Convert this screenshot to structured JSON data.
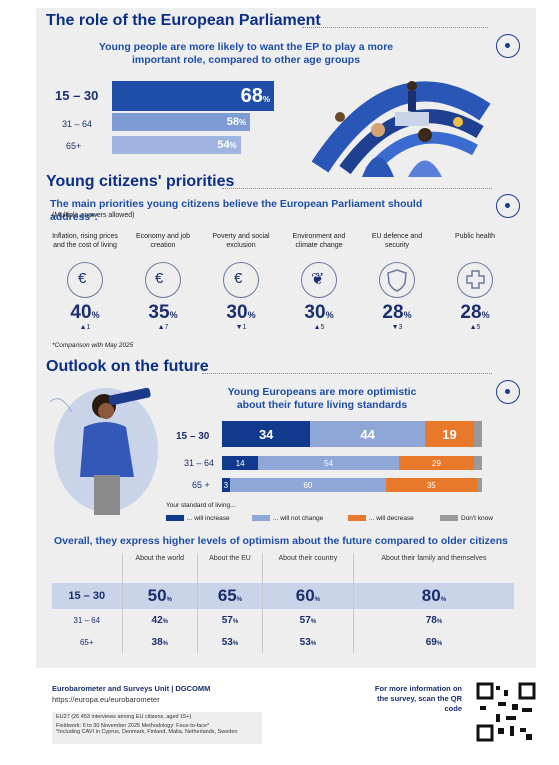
{
  "section1": {
    "title": "The role of the European Parliament",
    "subtitle": "Young people are more likely to want the EP to play a more important role, compared to other age groups",
    "rows": [
      {
        "age": "15 – 30",
        "value": 68,
        "label": "68"
      },
      {
        "age": "31 – 64",
        "value": 58,
        "label": "58"
      },
      {
        "age": "65+",
        "value": 54,
        "label": "54"
      }
    ],
    "pct": "%"
  },
  "section2": {
    "title": "Young citizens' priorities",
    "subtitle": "The main priorities young citizens believe the European Parliament should address*:",
    "note": "(Multiple answers allowed)",
    "items": [
      {
        "label": "Inflation, rising prices and the cost of living",
        "value": "40",
        "change": "▲1",
        "icon": "euro-basket-icon"
      },
      {
        "label": "Economy and job creation",
        "value": "35",
        "change": "▲7",
        "icon": "coins-icon"
      },
      {
        "label": "Poverty and social exclusion",
        "value": "30",
        "change": "▼1",
        "icon": "hands-euro-icon"
      },
      {
        "label": "Environment and climate change",
        "value": "30",
        "change": "▲5",
        "icon": "globe-leaf-icon"
      },
      {
        "label": "EU defence and security",
        "value": "28",
        "change": "▼3",
        "icon": "shield-icon"
      },
      {
        "label": "Public health",
        "value": "28",
        "change": "▲5",
        "icon": "health-cross-icon"
      }
    ],
    "footnote": "*Comparison with May 2025"
  },
  "section3": {
    "title": "Outlook on the future",
    "subtitle": "Young Europeans are more optimistic about their future living standards",
    "rows": [
      {
        "age": "15 – 30",
        "increase": 34,
        "same": 44,
        "decrease": 19,
        "dk": 3
      },
      {
        "age": "31 – 64",
        "increase": 14,
        "same": 54,
        "decrease": 29,
        "dk": 3
      },
      {
        "age": "65 +",
        "increase": 3,
        "same": 60,
        "decrease": 35,
        "dk": 2
      }
    ],
    "legend_title": "Your standard of living...",
    "legend": [
      "... will increase",
      "... will not change",
      "... will decrease",
      "Don't know"
    ],
    "colors": {
      "increase": "#123a8c",
      "same": "#8fa7d6",
      "decrease": "#e8782a",
      "dk": "#999999"
    }
  },
  "section4": {
    "title": "Overall, they express higher levels of optimism about the future compared to older citizens",
    "columns": [
      "About the world",
      "About the EU",
      "About their country",
      "About their family and themselves"
    ],
    "rows": [
      {
        "age": "15 – 30",
        "values": [
          "50",
          "65",
          "60",
          "80"
        ]
      },
      {
        "age": "31 – 64",
        "values": [
          "42",
          "57",
          "57",
          "78"
        ]
      },
      {
        "age": "65+",
        "values": [
          "38",
          "53",
          "53",
          "69"
        ]
      }
    ]
  },
  "footer": {
    "unit": "Eurobarometer and Surveys Unit | DGCOMM",
    "url": "https://europa.eu/eurobarometer",
    "box1": "EU27 (26 453 interviews among EU citizens, aged 15+)",
    "box2": "Fieldwork: 6 to 30 November 2025 Methodology: Face-to-face*",
    "box3": "*Including CAVI in Cyprus, Denmark, Finland, Malta, Netherlands, Sweden",
    "qr_text": "For more information on the survey, scan the QR code"
  }
}
